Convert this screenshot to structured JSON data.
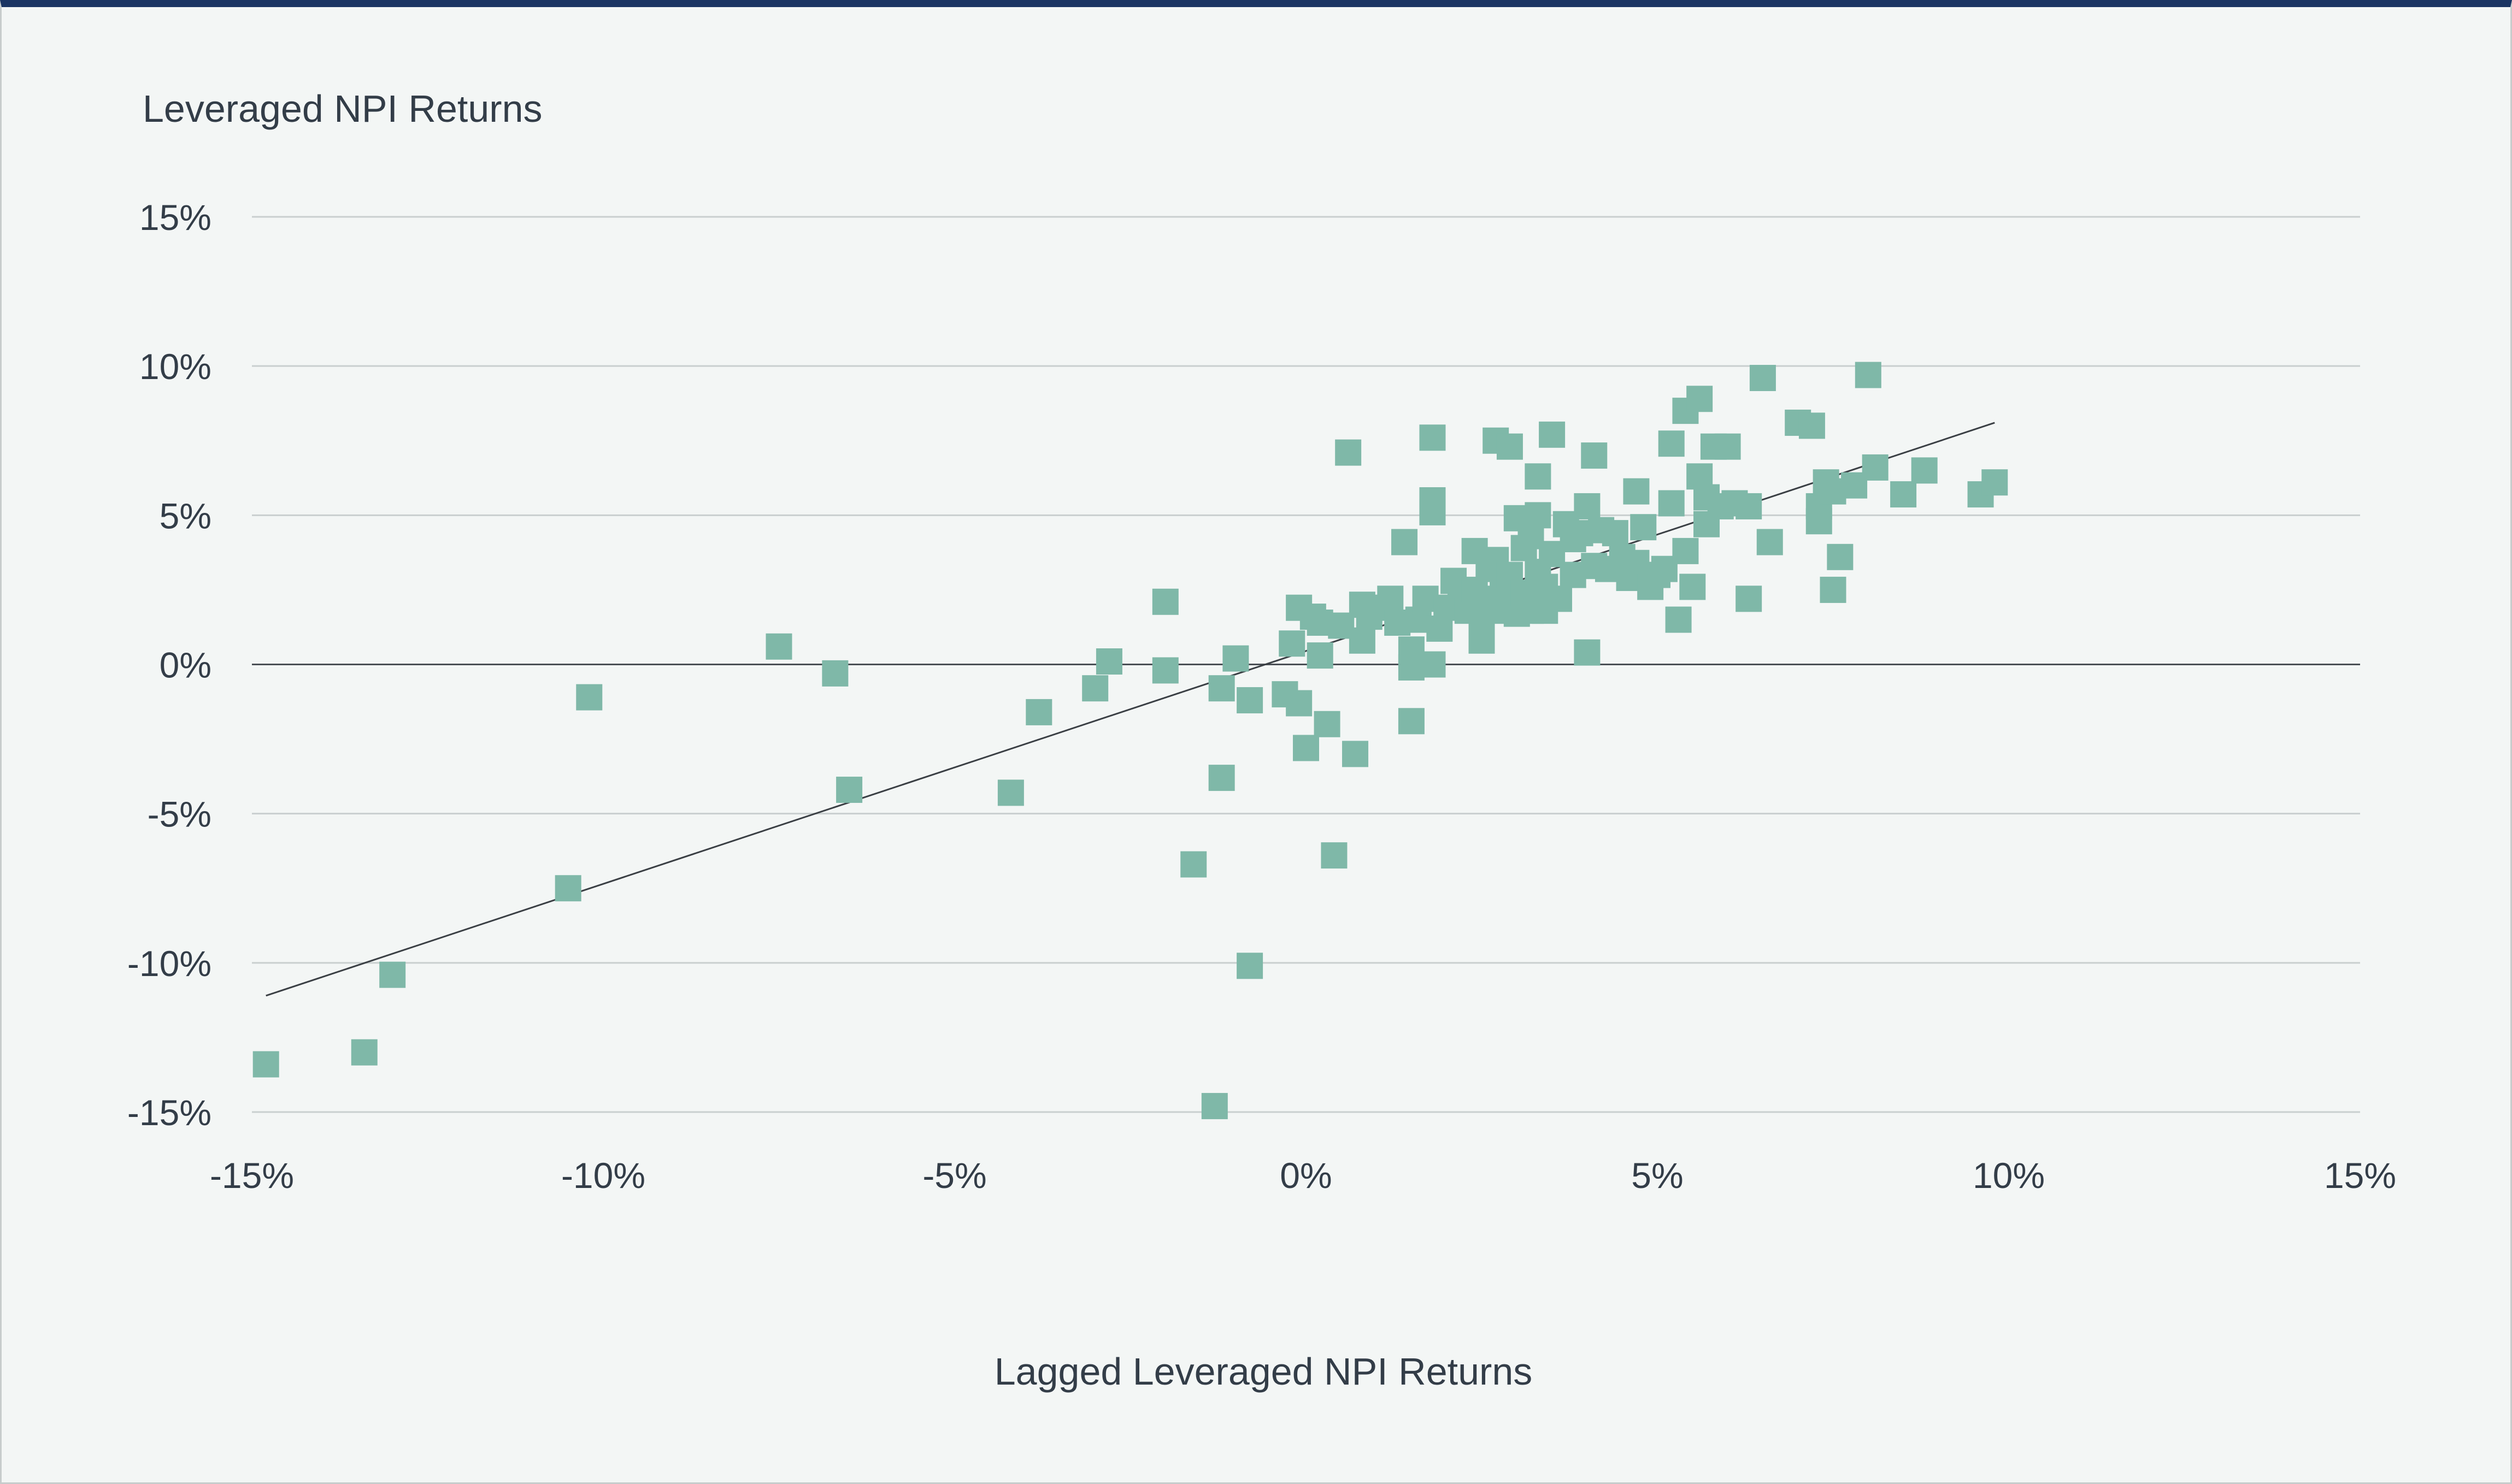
{
  "chart_data": {
    "type": "scatter",
    "title": "",
    "xlabel": "Lagged Leveraged NPI Returns",
    "ylabel": "Leveraged NPI Returns",
    "xlim": [
      -15,
      15
    ],
    "ylim": [
      -15,
      15
    ],
    "x_ticks": [
      -15,
      -10,
      -5,
      0,
      5,
      10,
      15
    ],
    "y_ticks": [
      -15,
      -10,
      -5,
      0,
      5,
      10,
      15
    ],
    "x_tick_labels": [
      "-15%",
      "-10%",
      "-5%",
      "0%",
      "5%",
      "10%",
      "15%"
    ],
    "y_tick_labels": [
      "-15%",
      "-10%",
      "-5%",
      "0%",
      "5%",
      "10%",
      "15%"
    ],
    "grid": true,
    "marker_color": "#7fb8a8",
    "trendline": {
      "x": [
        -14.8,
        9.8
      ],
      "y": [
        -11.1,
        8.1
      ]
    },
    "points": [
      [
        -14.8,
        -13.4
      ],
      [
        -13.4,
        -13.0
      ],
      [
        -13.0,
        -10.4
      ],
      [
        -10.5,
        -7.5
      ],
      [
        -10.2,
        -1.1
      ],
      [
        -7.5,
        0.6
      ],
      [
        -6.7,
        -0.3
      ],
      [
        -6.5,
        -4.2
      ],
      [
        -4.2,
        -4.3
      ],
      [
        -3.8,
        -1.6
      ],
      [
        -3.0,
        -0.8
      ],
      [
        -2.8,
        0.1
      ],
      [
        -2.0,
        -0.2
      ],
      [
        -2.0,
        2.1
      ],
      [
        -1.6,
        -6.7
      ],
      [
        -1.3,
        -14.8
      ],
      [
        -1.2,
        -0.8
      ],
      [
        -1.2,
        -3.8
      ],
      [
        -1.0,
        0.2
      ],
      [
        -0.8,
        -10.1
      ],
      [
        -0.8,
        -1.2
      ],
      [
        -0.3,
        -1.0
      ],
      [
        -0.2,
        0.7
      ],
      [
        -0.1,
        1.9
      ],
      [
        -0.1,
        -1.3
      ],
      [
        0.0,
        -2.8
      ],
      [
        0.1,
        1.6
      ],
      [
        0.2,
        0.3
      ],
      [
        0.2,
        1.4
      ],
      [
        0.3,
        -2.0
      ],
      [
        0.4,
        -6.4
      ],
      [
        0.5,
        1.3
      ],
      [
        0.6,
        7.1
      ],
      [
        0.7,
        -3.0
      ],
      [
        0.8,
        0.8
      ],
      [
        0.8,
        2.0
      ],
      [
        0.9,
        1.6
      ],
      [
        1.0,
        1.9
      ],
      [
        1.2,
        2.2
      ],
      [
        1.3,
        1.4
      ],
      [
        1.4,
        4.1
      ],
      [
        1.5,
        0.5
      ],
      [
        1.5,
        -1.9
      ],
      [
        1.5,
        -0.1
      ],
      [
        1.6,
        1.5
      ],
      [
        1.7,
        2.2
      ],
      [
        1.8,
        5.5
      ],
      [
        1.8,
        5.1
      ],
      [
        1.8,
        7.6
      ],
      [
        1.8,
        0.0
      ],
      [
        1.9,
        1.2
      ],
      [
        2.0,
        1.9
      ],
      [
        2.1,
        2.8
      ],
      [
        2.2,
        2.1
      ],
      [
        2.3,
        1.8
      ],
      [
        2.4,
        2.5
      ],
      [
        2.4,
        3.8
      ],
      [
        2.5,
        0.8
      ],
      [
        2.5,
        1.4
      ],
      [
        2.6,
        3.2
      ],
      [
        2.6,
        2.2
      ],
      [
        2.7,
        7.5
      ],
      [
        2.7,
        3.5
      ],
      [
        2.8,
        1.8
      ],
      [
        2.8,
        2.6
      ],
      [
        2.9,
        7.3
      ],
      [
        2.9,
        3.0
      ],
      [
        3.0,
        2.1
      ],
      [
        3.0,
        4.9
      ],
      [
        3.0,
        1.7
      ],
      [
        3.1,
        3.9
      ],
      [
        3.1,
        2.4
      ],
      [
        3.2,
        4.3
      ],
      [
        3.2,
        1.8
      ],
      [
        3.3,
        6.3
      ],
      [
        3.3,
        5.0
      ],
      [
        3.3,
        3.1
      ],
      [
        3.4,
        2.6
      ],
      [
        3.4,
        1.8
      ],
      [
        3.5,
        7.7
      ],
      [
        3.5,
        3.7
      ],
      [
        3.6,
        2.2
      ],
      [
        3.7,
        4.7
      ],
      [
        3.8,
        4.2
      ],
      [
        3.8,
        3.0
      ],
      [
        3.9,
        4.4
      ],
      [
        4.0,
        5.3
      ],
      [
        4.0,
        0.4
      ],
      [
        4.1,
        7.0
      ],
      [
        4.1,
        3.3
      ],
      [
        4.2,
        4.5
      ],
      [
        4.3,
        3.2
      ],
      [
        4.4,
        4.4
      ],
      [
        4.5,
        3.6
      ],
      [
        4.6,
        2.9
      ],
      [
        4.7,
        5.8
      ],
      [
        4.7,
        3.4
      ],
      [
        4.8,
        4.6
      ],
      [
        4.9,
        2.6
      ],
      [
        5.0,
        3.0
      ],
      [
        5.1,
        3.2
      ],
      [
        5.2,
        7.4
      ],
      [
        5.2,
        5.4
      ],
      [
        5.3,
        1.5
      ],
      [
        5.4,
        8.5
      ],
      [
        5.4,
        3.8
      ],
      [
        5.5,
        2.6
      ],
      [
        5.6,
        8.9
      ],
      [
        5.6,
        6.3
      ],
      [
        5.7,
        5.6
      ],
      [
        5.7,
        4.7
      ],
      [
        5.8,
        7.3
      ],
      [
        5.9,
        5.3
      ],
      [
        6.0,
        7.3
      ],
      [
        6.1,
        5.4
      ],
      [
        6.3,
        2.2
      ],
      [
        6.3,
        5.3
      ],
      [
        6.5,
        9.6
      ],
      [
        6.6,
        4.1
      ],
      [
        7.0,
        8.1
      ],
      [
        7.2,
        8.0
      ],
      [
        7.3,
        4.8
      ],
      [
        7.3,
        5.3
      ],
      [
        7.4,
        6.1
      ],
      [
        7.5,
        5.8
      ],
      [
        7.5,
        2.5
      ],
      [
        7.6,
        3.6
      ],
      [
        7.8,
        6.0
      ],
      [
        8.0,
        9.7
      ],
      [
        8.1,
        6.6
      ],
      [
        8.5,
        5.7
      ],
      [
        8.8,
        6.5
      ],
      [
        9.6,
        5.7
      ],
      [
        9.8,
        6.1
      ]
    ]
  }
}
